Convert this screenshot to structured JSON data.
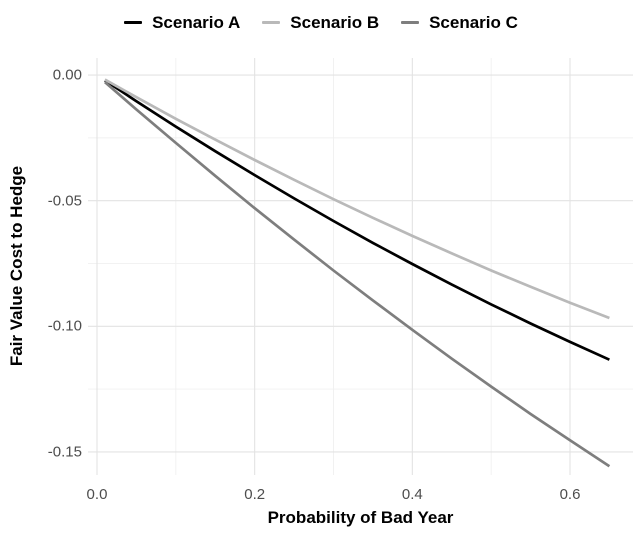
{
  "chart_data": {
    "type": "line",
    "title": "",
    "xlabel": "Probability of Bad Year",
    "ylabel": "Fair Value Cost to Hedge",
    "grid": true,
    "legend_position": "top",
    "xlim": [
      -0.0114,
      0.6799
    ],
    "ylim": [
      -0.1592,
      0.0068
    ],
    "x": [
      0.01,
      0.05,
      0.1,
      0.15,
      0.2,
      0.25,
      0.3,
      0.35,
      0.4,
      0.45,
      0.5,
      0.55,
      0.6,
      0.65
    ],
    "series": [
      {
        "name": "Scenario A",
        "color": "#000000",
        "values": [
          -0.0021,
          -0.0104,
          -0.0205,
          -0.0303,
          -0.0398,
          -0.0491,
          -0.0581,
          -0.0668,
          -0.0752,
          -0.0834,
          -0.0913,
          -0.0989,
          -0.1062,
          -0.1133
        ]
      },
      {
        "name": "Scenario B",
        "color": "#b9b9b9",
        "values": [
          -0.0018,
          -0.0088,
          -0.0174,
          -0.0257,
          -0.0338,
          -0.0417,
          -0.0494,
          -0.0568,
          -0.064,
          -0.071,
          -0.0778,
          -0.0843,
          -0.0906,
          -0.0967
        ]
      },
      {
        "name": "Scenario C",
        "color": "#7e7e7e",
        "values": [
          -0.0028,
          -0.0137,
          -0.027,
          -0.0401,
          -0.053,
          -0.0655,
          -0.0778,
          -0.0897,
          -0.1014,
          -0.1129,
          -0.124,
          -0.1349,
          -0.1454,
          -0.1557
        ]
      }
    ],
    "x_ticks": [
      {
        "value": 0.0,
        "label": "0.0"
      },
      {
        "value": 0.2,
        "label": "0.2"
      },
      {
        "value": 0.4,
        "label": "0.4"
      },
      {
        "value": 0.6,
        "label": "0.6"
      }
    ],
    "y_ticks": [
      {
        "value": 0.0,
        "label": "0.00"
      },
      {
        "value": -0.05,
        "label": "-0.05"
      },
      {
        "value": -0.1,
        "label": "-0.10"
      },
      {
        "value": -0.15,
        "label": "-0.15"
      }
    ],
    "x_minor_ticks": [
      0.1,
      0.3,
      0.5
    ],
    "y_minor_ticks": [
      -0.025,
      -0.075,
      -0.125
    ],
    "colors": {
      "grid_major": "#e3e3e3",
      "grid_minor": "#f0f0f0",
      "tick_label": "#4d4d4d",
      "background": "#ffffff"
    }
  }
}
